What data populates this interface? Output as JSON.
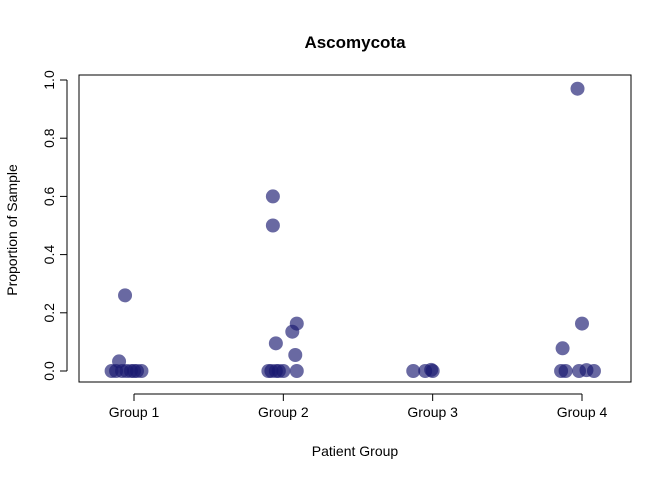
{
  "chart_data": {
    "type": "scatter",
    "title": "Ascomycota",
    "xlabel": "Patient Group",
    "ylabel": "Proportion of Sample",
    "categories": [
      "Group 1",
      "Group 2",
      "Group 3",
      "Group 4"
    ],
    "ylim": [
      -0.03,
      1.0
    ],
    "yticks": [
      "0.0",
      "0.2",
      "0.4",
      "0.6",
      "0.8",
      "1.0"
    ],
    "grid": false,
    "point_color": "#191970",
    "points": [
      {
        "group": "Group 1",
        "jitter": -0.15,
        "y": 0.0
      },
      {
        "group": "Group 1",
        "jitter": -0.12,
        "y": 0.0
      },
      {
        "group": "Group 1",
        "jitter": -0.1,
        "y": 0.033
      },
      {
        "group": "Group 1",
        "jitter": -0.08,
        "y": 0.0
      },
      {
        "group": "Group 1",
        "jitter": -0.06,
        "y": 0.26
      },
      {
        "group": "Group 1",
        "jitter": -0.05,
        "y": 0.0
      },
      {
        "group": "Group 1",
        "jitter": -0.02,
        "y": 0.0
      },
      {
        "group": "Group 1",
        "jitter": 0.0,
        "y": 0.0
      },
      {
        "group": "Group 1",
        "jitter": 0.02,
        "y": 0.0
      },
      {
        "group": "Group 1",
        "jitter": 0.05,
        "y": 0.0
      },
      {
        "group": "Group 2",
        "jitter": -0.1,
        "y": 0.0
      },
      {
        "group": "Group 2",
        "jitter": -0.08,
        "y": 0.0
      },
      {
        "group": "Group 2",
        "jitter": -0.07,
        "y": 0.6
      },
      {
        "group": "Group 2",
        "jitter": -0.07,
        "y": 0.5
      },
      {
        "group": "Group 2",
        "jitter": -0.05,
        "y": 0.095
      },
      {
        "group": "Group 2",
        "jitter": -0.05,
        "y": 0.0
      },
      {
        "group": "Group 2",
        "jitter": -0.03,
        "y": 0.0
      },
      {
        "group": "Group 2",
        "jitter": 0.0,
        "y": 0.0
      },
      {
        "group": "Group 2",
        "jitter": 0.06,
        "y": 0.135
      },
      {
        "group": "Group 2",
        "jitter": 0.09,
        "y": 0.163
      },
      {
        "group": "Group 2",
        "jitter": 0.08,
        "y": 0.055
      },
      {
        "group": "Group 2",
        "jitter": 0.09,
        "y": 0.0
      },
      {
        "group": "Group 3",
        "jitter": -0.13,
        "y": 0.0
      },
      {
        "group": "Group 3",
        "jitter": -0.05,
        "y": 0.0
      },
      {
        "group": "Group 3",
        "jitter": -0.01,
        "y": 0.004
      },
      {
        "group": "Group 3",
        "jitter": 0.0,
        "y": 0.0
      },
      {
        "group": "Group 4",
        "jitter": -0.13,
        "y": 0.078
      },
      {
        "group": "Group 4",
        "jitter": -0.14,
        "y": 0.0
      },
      {
        "group": "Group 4",
        "jitter": -0.11,
        "y": 0.0
      },
      {
        "group": "Group 4",
        "jitter": -0.03,
        "y": 0.97
      },
      {
        "group": "Group 4",
        "jitter": -0.02,
        "y": 0.0
      },
      {
        "group": "Group 4",
        "jitter": 0.0,
        "y": 0.163
      },
      {
        "group": "Group 4",
        "jitter": 0.03,
        "y": 0.003
      },
      {
        "group": "Group 4",
        "jitter": 0.08,
        "y": 0.0
      }
    ]
  }
}
